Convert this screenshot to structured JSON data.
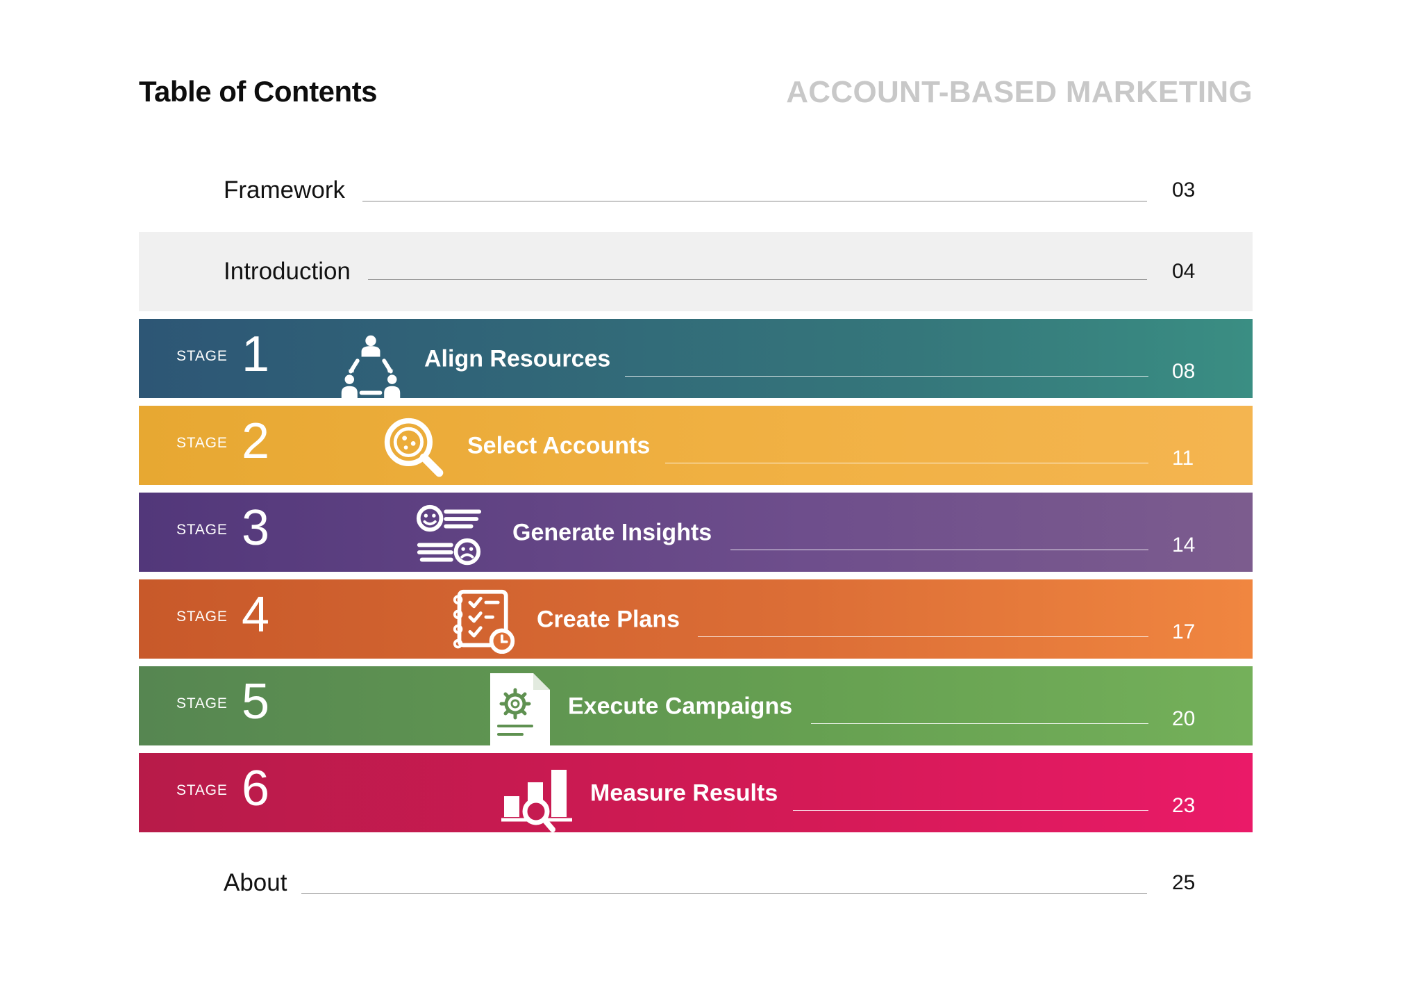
{
  "header": {
    "title": "Table of Contents",
    "document_title": "ACCOUNT-BASED MARKETING"
  },
  "entries": {
    "framework": {
      "label": "Framework",
      "page": "03"
    },
    "introduction": {
      "label": "Introduction",
      "page": "04"
    },
    "about": {
      "label": "About",
      "page": "25"
    }
  },
  "stage_word": "STAGE",
  "stages": [
    {
      "number": "1",
      "title": "Align Resources",
      "page": "08",
      "icon": "team-circle-icon"
    },
    {
      "number": "2",
      "title": "Select Accounts",
      "page": "11",
      "icon": "magnifier-target-icon"
    },
    {
      "number": "3",
      "title": "Generate Insights",
      "page": "14",
      "icon": "feedback-faces-icon"
    },
    {
      "number": "4",
      "title": "Create Plans",
      "page": "17",
      "icon": "checklist-clock-icon"
    },
    {
      "number": "5",
      "title": "Execute Campaigns",
      "page": "20",
      "icon": "document-gear-icon"
    },
    {
      "number": "6",
      "title": "Measure Results",
      "page": "23",
      "icon": "bar-chart-magnifier-icon"
    }
  ],
  "colors": {
    "stage1": "#35777b",
    "stage2": "#f1b144",
    "stage3": "#6e4e8c",
    "stage4": "#dc6e36",
    "stage5": "#66a051",
    "stage6": "#d41a56",
    "intro_band": "#f0f0f0",
    "doc_title": "#c8c8c8"
  }
}
